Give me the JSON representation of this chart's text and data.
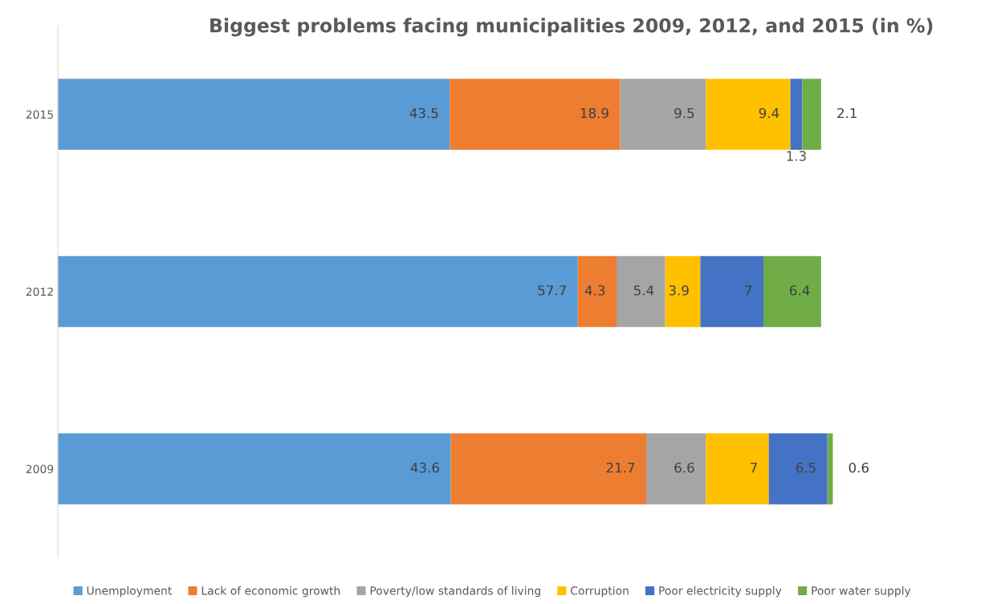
{
  "chart_data": {
    "type": "bar",
    "orientation": "horizontal",
    "stacked": true,
    "title": "Biggest problems facing municipalities 2009, 2012, and 2015 (in %)",
    "categories": [
      "2015",
      "2012",
      "2009"
    ],
    "series": [
      {
        "name": "Unemployment",
        "color": "#5b9bd5",
        "values": [
          43.5,
          57.7,
          43.6
        ]
      },
      {
        "name": "Lack of economic growth",
        "color": "#ed7d31",
        "values": [
          18.9,
          4.3,
          21.7
        ]
      },
      {
        "name": "Poverty/low standards of living",
        "color": "#a5a5a5",
        "values": [
          9.5,
          5.4,
          6.6
        ]
      },
      {
        "name": "Corruption",
        "color": "#ffc000",
        "values": [
          9.4,
          3.9,
          7
        ]
      },
      {
        "name": "Poor electricity supply",
        "color": "#4472c4",
        "values": [
          1.3,
          7,
          6.5
        ]
      },
      {
        "name": "Poor water supply",
        "color": "#70ad47",
        "values": [
          2.1,
          6.4,
          0.6
        ]
      }
    ],
    "data_labels": true,
    "legend": "bottom",
    "tick_labels": "y",
    "grid": false
  }
}
